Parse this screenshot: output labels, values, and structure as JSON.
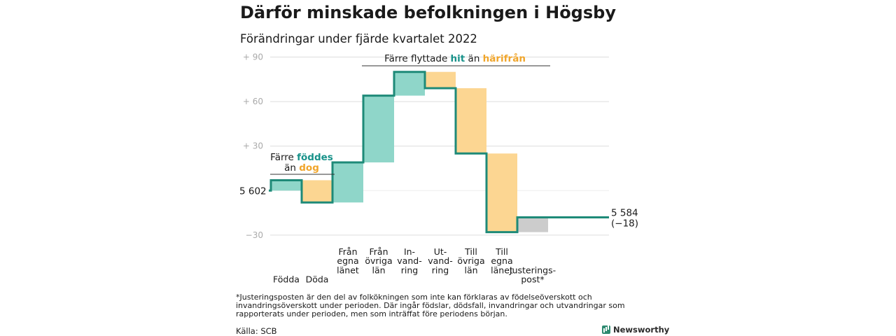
{
  "title": "Därför minskade befolkningen i Högsby",
  "subtitle": "Förändringar under fjärde kvartalet 2022",
  "chart_data": {
    "type": "waterfall",
    "baseline_label": "5 602",
    "end_label_line1": "5 584",
    "end_label_line2": "(−18)",
    "ylim": [
      -30,
      90
    ],
    "yticks": [
      {
        "value": 90,
        "label": "+ 90"
      },
      {
        "value": 60,
        "label": "+ 60"
      },
      {
        "value": 30,
        "label": "+ 30"
      },
      {
        "value": -30,
        "label": "−30"
      }
    ],
    "steps": [
      {
        "label": [
          "",
          "",
          "",
          "Födda"
        ],
        "start": 0,
        "end": 7,
        "kind": "in"
      },
      {
        "label": [
          "",
          "",
          "",
          "Döda"
        ],
        "start": 7,
        "end": -8,
        "kind": "out"
      },
      {
        "label": [
          "Från",
          "egna",
          "länet",
          ""
        ],
        "start": -8,
        "end": 19,
        "kind": "in"
      },
      {
        "label": [
          "Från",
          "övriga",
          "län",
          ""
        ],
        "start": 19,
        "end": 64,
        "kind": "in"
      },
      {
        "label": [
          "In-",
          "vand-",
          "ring",
          ""
        ],
        "start": 64,
        "end": 80,
        "kind": "in"
      },
      {
        "label": [
          "Ut-",
          "vand-",
          "ring",
          ""
        ],
        "start": 80,
        "end": 69,
        "kind": "out"
      },
      {
        "label": [
          "Till",
          "övriga",
          "län",
          ""
        ],
        "start": 69,
        "end": 25,
        "kind": "out"
      },
      {
        "label": [
          "Till",
          "egna",
          "länet",
          ""
        ],
        "start": 25,
        "end": -28,
        "kind": "out"
      },
      {
        "label": [
          "",
          "",
          "Justerings-",
          "post*"
        ],
        "start": -28,
        "end": -18,
        "kind": "adjust"
      }
    ],
    "annotations": {
      "births": {
        "line1": "Färre ",
        "line1_hl": "föddes",
        "line2": "än ",
        "line2_hl": "dog"
      },
      "migration": {
        "pre": "Färre flyttade ",
        "hl1": "hit",
        "mid": " än ",
        "hl2": "härifrån"
      }
    },
    "colors": {
      "in": "#8fd6c9",
      "out": "#fcd692",
      "adjust": "#cccccc",
      "line": "#1e8a78",
      "accent_in": "#18928a",
      "accent_out": "#f0a52b",
      "grid": "#dddddd"
    }
  },
  "footnote": "*Justeringsposten är den del av folkökningen som inte kan förklaras av födelseöverskott och invandringsöverskott under perioden. Där ingår födslar, dödsfall, invandringar och utvandringar som rapporterats under perioden, men som inträffat före periodens början.",
  "source": "Källa: SCB",
  "brand": "Newsworthy"
}
